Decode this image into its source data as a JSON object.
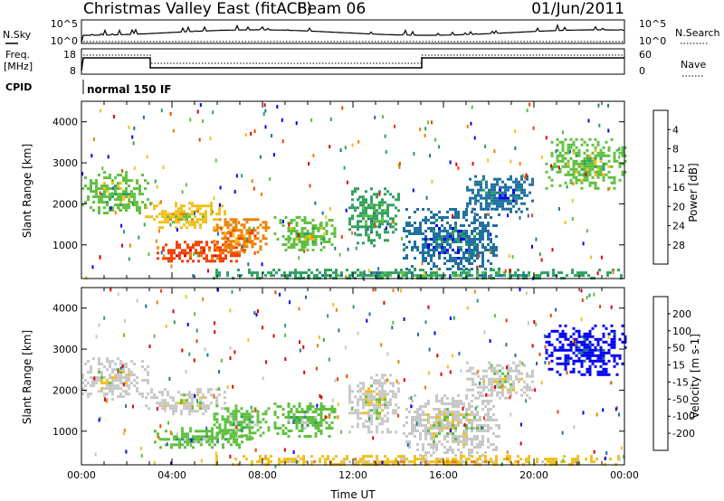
{
  "header": {
    "title": "Christmas Valley East (fitACF)",
    "beam": "Beam 06",
    "date": "01/Jun/2011"
  },
  "top_panels": {
    "nsky": {
      "label": "N.Sky",
      "tick_top": "10^5",
      "tick_bottom": "10^0"
    },
    "nsearch": {
      "label": "N.Search",
      "tick_top": "10^5",
      "tick_bottom": "10^0"
    },
    "freq": {
      "label_line1": "Freq.",
      "label_line2": "[MHz]",
      "tick_top": "18",
      "tick_bottom": "8"
    },
    "nave": {
      "label": "Nave",
      "tick_top": "60",
      "tick_bottom": "0"
    },
    "cpid": {
      "label": "CPID",
      "mode_text": "normal 150 IF"
    }
  },
  "chart_data": [
    {
      "type": "heatmap",
      "name": "power",
      "ylabel": "Slant Range [km]",
      "xlabel": "",
      "ylim": [
        180,
        4500
      ],
      "y_ticks": [
        1000,
        2000,
        3000,
        4000
      ],
      "colorbar": {
        "label": "Power [dB]",
        "range": [
          0,
          32
        ],
        "ticks": [
          "4",
          "8",
          "12",
          "16",
          "20",
          "24",
          "28"
        ],
        "colors": [
          "#0000f0",
          "#2070a0",
          "#30a060",
          "#60c040",
          "#f0c020",
          "#f08000",
          "#f04000",
          "#e00000"
        ]
      },
      "regions": [
        {
          "t0": 0.0,
          "t1": 2.9,
          "r0": 1800,
          "r1": 2800,
          "level": 3
        },
        {
          "t0": 2.8,
          "t1": 6.3,
          "r0": 1450,
          "r1": 2050,
          "level": 4
        },
        {
          "t0": 3.2,
          "t1": 7.5,
          "r0": 600,
          "r1": 1100,
          "level": 6
        },
        {
          "t0": 5.7,
          "t1": 8.3,
          "r0": 850,
          "r1": 1650,
          "level": 5
        },
        {
          "t0": 8.5,
          "t1": 11.2,
          "r0": 900,
          "r1": 1700,
          "level": 3
        },
        {
          "t0": 11.8,
          "t1": 14.0,
          "r0": 1000,
          "r1": 2400,
          "level": 2
        },
        {
          "t0": 14.2,
          "t1": 18.5,
          "r0": 400,
          "r1": 1900,
          "level": 1
        },
        {
          "t0": 17.0,
          "t1": 20.0,
          "r0": 1800,
          "r1": 2700,
          "level": 1
        },
        {
          "t0": 20.5,
          "t1": 24.0,
          "r0": 2400,
          "r1": 3600,
          "level": 3
        },
        {
          "t0": 5.8,
          "t1": 24.0,
          "r0": 180,
          "r1": 420,
          "level": 2
        }
      ]
    },
    {
      "type": "heatmap",
      "name": "velocity",
      "ylabel": "Slant Range [km]",
      "xlabel": "Time UT",
      "ylim": [
        180,
        4500
      ],
      "y_ticks": [
        1000,
        2000,
        3000,
        4000
      ],
      "x_ticks": [
        "00:00",
        "04:00",
        "08:00",
        "12:00",
        "16:00",
        "20:00",
        "00:00"
      ],
      "xlim_hours": [
        0,
        24
      ],
      "colorbar": {
        "label": "Velocity [m s-1]",
        "range": [
          -250,
          250
        ],
        "ticks": [
          "200",
          "100",
          "50",
          "15",
          "-15",
          "-50",
          "-100",
          "-200"
        ],
        "colors": [
          "#e00000",
          "#f04000",
          "#f08000",
          "#f0c020",
          "#c8c8c8",
          "#60c040",
          "#30a060",
          "#2070a0",
          "#0000f0"
        ]
      },
      "regions": [
        {
          "t0": 0.0,
          "t1": 2.9,
          "r0": 1800,
          "r1": 2800,
          "level": 4
        },
        {
          "t0": 2.8,
          "t1": 6.3,
          "r0": 1450,
          "r1": 2050,
          "level": 4
        },
        {
          "t0": 3.2,
          "t1": 7.5,
          "r0": 600,
          "r1": 1100,
          "level": 5
        },
        {
          "t0": 5.7,
          "t1": 8.3,
          "r0": 850,
          "r1": 1650,
          "level": 5
        },
        {
          "t0": 8.5,
          "t1": 11.2,
          "r0": 900,
          "r1": 1700,
          "level": 5
        },
        {
          "t0": 11.8,
          "t1": 14.0,
          "r0": 1000,
          "r1": 2400,
          "level": 4
        },
        {
          "t0": 14.2,
          "t1": 18.5,
          "r0": 400,
          "r1": 1900,
          "level": 4
        },
        {
          "t0": 17.0,
          "t1": 20.0,
          "r0": 1800,
          "r1": 2700,
          "level": 4
        },
        {
          "t0": 20.5,
          "t1": 24.0,
          "r0": 2400,
          "r1": 3600,
          "level": 8
        },
        {
          "t0": 5.8,
          "t1": 24.0,
          "r0": 180,
          "r1": 420,
          "level": 3
        }
      ]
    }
  ]
}
